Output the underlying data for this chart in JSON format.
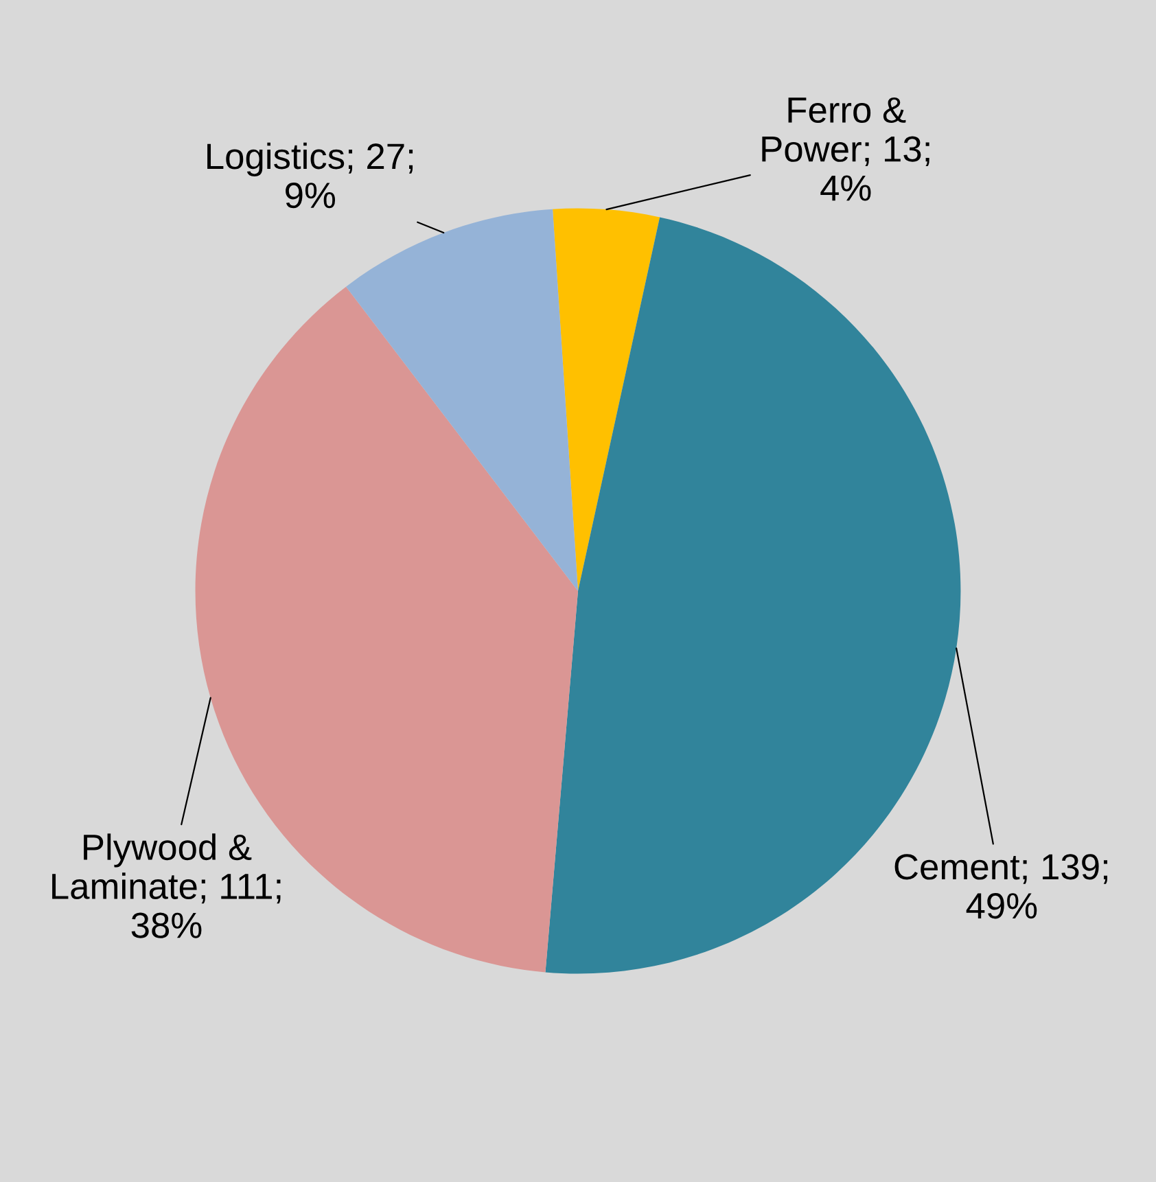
{
  "chart_data": {
    "type": "pie",
    "categories": [
      "Ferro & Power",
      "Cement",
      "Plywood & Laminate",
      "Logistics"
    ],
    "values": [
      13,
      139,
      111,
      27
    ],
    "value_labels": [
      "13; 4%",
      "139; 49%",
      "111; 38%",
      "27; 9%"
    ],
    "colors": [
      "#ffc000",
      "#31849b",
      "#da9694",
      "#95b3d7"
    ],
    "data_labels": true,
    "legend": false
  }
}
